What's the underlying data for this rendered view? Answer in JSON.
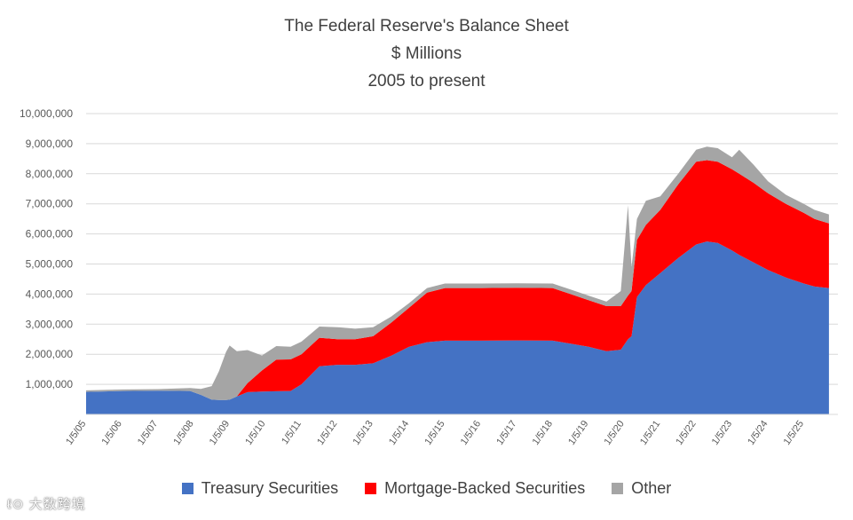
{
  "chart_data": {
    "type": "area",
    "stacked": true,
    "title": "The Federal Reserve's Balance Sheet",
    "subtitle": "$ Millions",
    "subtitle2": "2005 to present",
    "ylim": [
      0,
      10000000
    ],
    "yticks": [
      "",
      "1,000,000",
      "2,000,000",
      "3,000,000",
      "4,000,000",
      "5,000,000",
      "6,000,000",
      "7,000,000",
      "8,000,000",
      "9,000,000",
      "10,000,000"
    ],
    "xticks": [
      "1/5/05",
      "1/5/06",
      "1/5/07",
      "1/5/08",
      "1/5/09",
      "1/5/10",
      "1/5/11",
      "1/5/12",
      "1/5/13",
      "1/5/14",
      "1/5/15",
      "1/5/16",
      "1/5/17",
      "1/5/18",
      "1/5/19",
      "1/5/20",
      "1/5/21",
      "1/5/22",
      "1/5/23",
      "1/5/24",
      "1/5/25"
    ],
    "grid": true,
    "legend_position": "bottom",
    "x": [
      2005.0,
      2006.0,
      2007.0,
      2007.9,
      2008.2,
      2008.5,
      2008.7,
      2008.9,
      2009.0,
      2009.2,
      2009.5,
      2009.9,
      2010.3,
      2010.7,
      2011.0,
      2011.5,
      2012.0,
      2012.5,
      2013.0,
      2013.5,
      2014.0,
      2014.5,
      2015.0,
      2016.0,
      2017.0,
      2018.0,
      2018.5,
      2019.0,
      2019.5,
      2019.9,
      2020.1,
      2020.2,
      2020.35,
      2020.6,
      2021.0,
      2021.5,
      2022.0,
      2022.3,
      2022.6,
      2023.0,
      2023.2,
      2023.6,
      2024.0,
      2024.5,
      2025.0,
      2025.3,
      2025.7
    ],
    "series": [
      {
        "name": "Treasury Securities",
        "color": "#4472c4",
        "values": [
          750000,
          780000,
          790000,
          780000,
          650000,
          490000,
          480000,
          480000,
          490000,
          600000,
          740000,
          760000,
          770000,
          780000,
          1000000,
          1600000,
          1650000,
          1650000,
          1700000,
          1950000,
          2250000,
          2400000,
          2450000,
          2450000,
          2460000,
          2450000,
          2350000,
          2250000,
          2100000,
          2150000,
          2500000,
          2600000,
          3900000,
          4300000,
          4700000,
          5200000,
          5650000,
          5750000,
          5700000,
          5450000,
          5300000,
          5050000,
          4800000,
          4550000,
          4350000,
          4250000,
          4200000
        ]
      },
      {
        "name": "Mortgage-Backed Securities",
        "color": "#ff0000",
        "values": [
          0,
          0,
          0,
          0,
          0,
          0,
          0,
          0,
          0,
          0,
          300000,
          700000,
          1050000,
          1050000,
          1000000,
          950000,
          850000,
          850000,
          900000,
          1100000,
          1300000,
          1650000,
          1750000,
          1750000,
          1750000,
          1750000,
          1650000,
          1550000,
          1500000,
          1450000,
          1450000,
          1500000,
          1900000,
          2000000,
          2100000,
          2450000,
          2750000,
          2700000,
          2700000,
          2700000,
          2700000,
          2650000,
          2550000,
          2450000,
          2350000,
          2250000,
          2150000
        ]
      },
      {
        "name": "Other",
        "color": "#a5a5a5",
        "values": [
          50000,
          50000,
          50000,
          100000,
          200000,
          450000,
          950000,
          1600000,
          1800000,
          1500000,
          1100000,
          500000,
          450000,
          420000,
          420000,
          370000,
          400000,
          350000,
          300000,
          200000,
          150000,
          150000,
          150000,
          150000,
          150000,
          150000,
          150000,
          150000,
          150000,
          500000,
          3000000,
          800000,
          700000,
          800000,
          450000,
          350000,
          400000,
          450000,
          450000,
          400000,
          800000,
          600000,
          400000,
          300000,
          300000,
          300000,
          300000
        ]
      }
    ]
  }
}
